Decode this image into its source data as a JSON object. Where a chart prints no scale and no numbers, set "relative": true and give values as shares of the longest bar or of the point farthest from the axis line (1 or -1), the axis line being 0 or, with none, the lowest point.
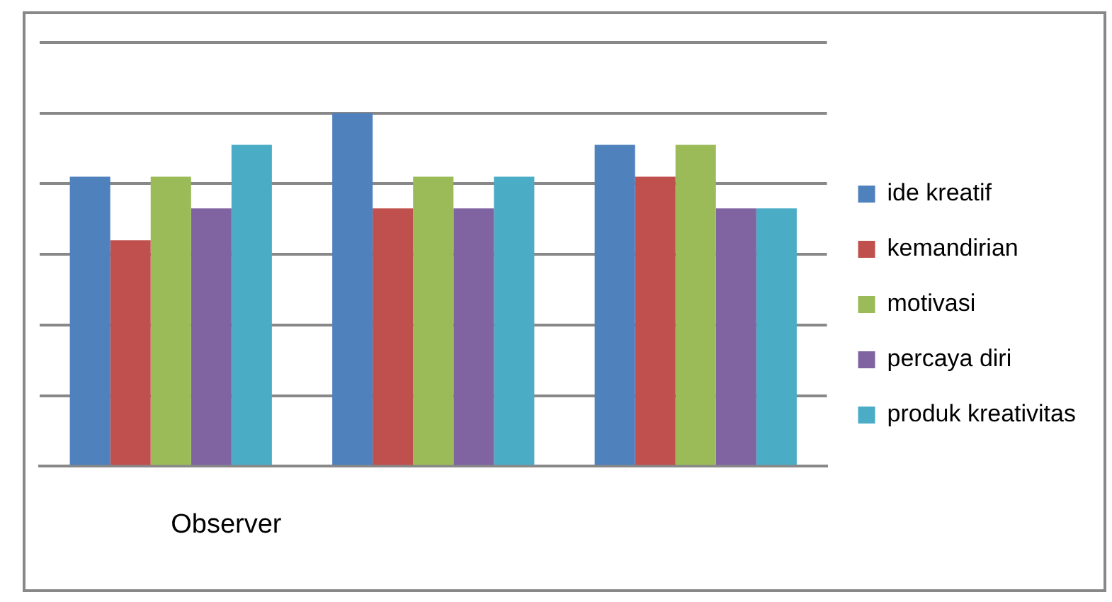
{
  "chart_data": {
    "type": "bar",
    "relative": true,
    "categories": [
      "Observer",
      null,
      null
    ],
    "grid": "y",
    "legend": "right",
    "series": [
      {
        "name": "ide kreatif",
        "color": "#4f81bd",
        "values": [
          0.82,
          1,
          0.91
        ]
      },
      {
        "name": "kemandirian",
        "color": "#c0504d",
        "values": [
          0.64,
          0.73,
          0.82
        ]
      },
      {
        "name": "motivasi",
        "color": "#9bbb59",
        "values": [
          0.82,
          0.82,
          0.91
        ]
      },
      {
        "name": "percaya diri",
        "color": "#8064a2",
        "values": [
          0.73,
          0.73,
          0.73
        ]
      },
      {
        "name": "produk kreativitas",
        "color": "#4bacc6",
        "values": [
          0.91,
          0.82,
          0.73
        ]
      }
    ]
  }
}
